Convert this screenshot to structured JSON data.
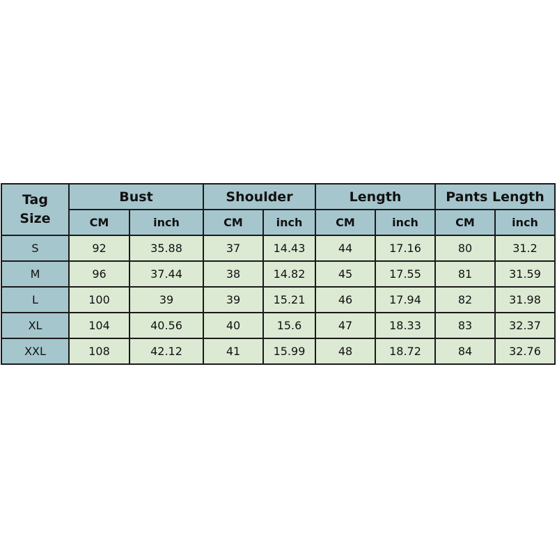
{
  "colors": {
    "header_bg": "#a6c6cd",
    "cell_bg": "#dcead3",
    "border": "#1a1a1a"
  },
  "table": {
    "tag_header": [
      "Tag",
      "Size"
    ],
    "groups": [
      "Bust",
      "Shoulder",
      "Length",
      "Pants Length"
    ],
    "units": [
      "CM",
      "inch"
    ],
    "rows": [
      [
        "S",
        "92",
        "35.88",
        "37",
        "14.43",
        "44",
        "17.16",
        "80",
        "31.2"
      ],
      [
        "M",
        "96",
        "37.44",
        "38",
        "14.82",
        "45",
        "17.55",
        "81",
        "31.59"
      ],
      [
        "L",
        "100",
        "39",
        "39",
        "15.21",
        "46",
        "17.94",
        "82",
        "31.98"
      ],
      [
        "XL",
        "104",
        "40.56",
        "40",
        "15.6",
        "47",
        "18.33",
        "83",
        "32.37"
      ],
      [
        "XXL",
        "108",
        "42.12",
        "41",
        "15.99",
        "48",
        "18.72",
        "84",
        "32.76"
      ]
    ]
  }
}
